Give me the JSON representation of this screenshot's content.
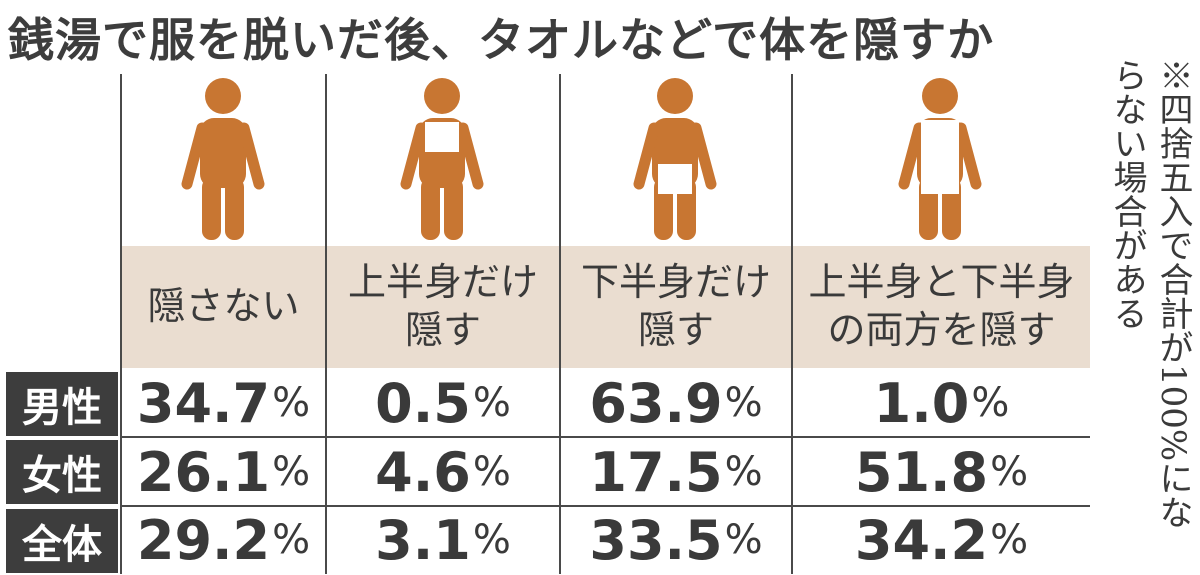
{
  "chart_data": {
    "type": "table",
    "title": "銭湯で服を脱いだ後、タオルなどで体を隠すか",
    "note": "※四捨五入で合計が100%にならない場合がある",
    "categories": [
      "隠さない",
      "上半身だけ隠す",
      "下半身だけ隠す",
      "上半身と下半身の両方を隠す"
    ],
    "category_lines": [
      [
        "隠さない"
      ],
      [
        "上半身だけ",
        "隠す"
      ],
      [
        "下半身だけ",
        "隠す"
      ],
      [
        "上半身と下半身",
        "の両方を隠す"
      ]
    ],
    "unit": "%",
    "series": [
      {
        "name": "男性",
        "values": [
          "34.7",
          "0.5",
          "63.9",
          "1.0"
        ]
      },
      {
        "name": "女性",
        "values": [
          "26.1",
          "4.6",
          "17.5",
          "51.8"
        ]
      },
      {
        "name": "全体",
        "values": [
          "29.2",
          "3.1",
          "33.5",
          "34.2"
        ]
      }
    ],
    "icons": [
      "figure-no-towel-icon",
      "figure-upper-towel-icon",
      "figure-lower-towel-icon",
      "figure-full-towel-icon"
    ],
    "colors": {
      "figure": "#c87632",
      "towel": "#ffffff",
      "header_band": "#eaddd0",
      "row_label_bg": "#3d3d3d",
      "row_label_text": "#ffffff",
      "text": "#3a3a3a"
    }
  }
}
